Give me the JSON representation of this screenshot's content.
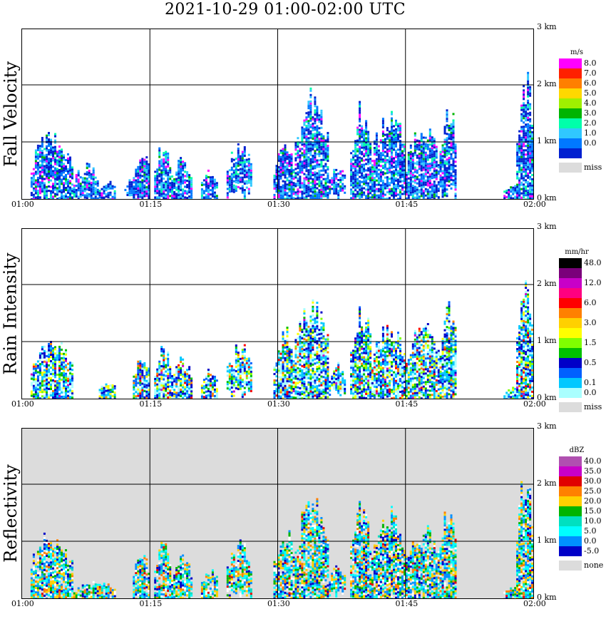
{
  "title": "2021-10-29   01:00-02:00 UTC",
  "chart_data": [
    {
      "type": "heatmap",
      "title": "Fall Velocity",
      "unit": "m/s",
      "x_ticks": [
        "01:00",
        "01:15",
        "01:30",
        "01:45",
        "02:00"
      ],
      "y_ticks": [
        "0 km",
        "1 km",
        "2 km",
        "3 km"
      ],
      "xlim": [
        "01:00",
        "02:00"
      ],
      "ylim_km": [
        0,
        3.0
      ],
      "grid": true,
      "background": "#ffffff",
      "missing_label": "miss",
      "colorbar": [
        {
          "label": "8.0",
          "color": "#ff00ff"
        },
        {
          "label": "7.0",
          "color": "#ff2000"
        },
        {
          "label": "6.0",
          "color": "#ff7f00"
        },
        {
          "label": "5.0",
          "color": "#ffd800"
        },
        {
          "label": "4.0",
          "color": "#a0f000"
        },
        {
          "label": "3.0",
          "color": "#00b400"
        },
        {
          "label": "2.0",
          "color": "#00ffaa"
        },
        {
          "label": "1.0",
          "color": "#30c8ff"
        },
        {
          "label": "0.0",
          "color": "#0078ff"
        },
        {
          "label": "",
          "color": "#0020d0"
        }
      ],
      "palette": [
        "#0020d0",
        "#0078ff",
        "#30c8ff",
        "#00ffaa",
        "#00b400",
        "#ff00ff"
      ],
      "weights": [
        0.34,
        0.28,
        0.18,
        0.08,
        0.04,
        0.01
      ],
      "clusters": [
        {
          "t0": 1,
          "t1": 6,
          "top_km": 1.15,
          "base_km": 0.0
        },
        {
          "t0": 6,
          "t1": 9,
          "top_km": 0.6,
          "base_km": 0.05
        },
        {
          "t0": 9,
          "t1": 11,
          "top_km": 0.3,
          "base_km": 0.0
        },
        {
          "t0": 12,
          "t1": 13.5,
          "top_km": 0.35,
          "base_km": 0.15
        },
        {
          "t0": 13,
          "t1": 15,
          "top_km": 0.8,
          "base_km": 0.0
        },
        {
          "t0": 15.5,
          "t1": 17.5,
          "top_km": 0.95,
          "base_km": 0.0
        },
        {
          "t0": 17.5,
          "t1": 20,
          "top_km": 0.7,
          "base_km": 0.0
        },
        {
          "t0": 21,
          "t1": 23,
          "top_km": 0.5,
          "base_km": 0.0
        },
        {
          "t0": 24,
          "t1": 27,
          "top_km": 1.0,
          "base_km": 0.25
        },
        {
          "t0": 29.5,
          "t1": 32,
          "top_km": 0.95,
          "base_km": 0.0
        },
        {
          "t0": 32,
          "t1": 36,
          "top_km": 1.8,
          "base_km": 0.0
        },
        {
          "t0": 36,
          "t1": 38,
          "top_km": 0.6,
          "base_km": 0.25
        },
        {
          "t0": 38.5,
          "t1": 41,
          "top_km": 1.6,
          "base_km": 0.0
        },
        {
          "t0": 41,
          "t1": 45,
          "top_km": 1.55,
          "base_km": 0.0
        },
        {
          "t0": 45,
          "t1": 49,
          "top_km": 1.25,
          "base_km": 0.0
        },
        {
          "t0": 49,
          "t1": 51,
          "top_km": 1.65,
          "base_km": 0.25
        },
        {
          "t0": 56.5,
          "t1": 58.5,
          "top_km": 0.25,
          "base_km": 0.0
        },
        {
          "t0": 58,
          "t1": 60,
          "top_km": 2.2,
          "base_km": 0.0
        }
      ]
    },
    {
      "type": "heatmap",
      "title": "Rain Intensity",
      "unit": "mm/hr",
      "x_ticks": [
        "01:00",
        "01:15",
        "01:30",
        "01:45",
        "02:00"
      ],
      "y_ticks": [
        "0 km",
        "1 km",
        "2 km",
        "3 km"
      ],
      "xlim": [
        "01:00",
        "02:00"
      ],
      "ylim_km": [
        0,
        3.0
      ],
      "grid": true,
      "background": "#ffffff",
      "missing_label": "miss",
      "colorbar": [
        {
          "label": "48.0",
          "color": "#000000"
        },
        {
          "label": "",
          "color": "#7a007a"
        },
        {
          "label": "12.0",
          "color": "#c800c8"
        },
        {
          "label": "",
          "color": "#ff0080"
        },
        {
          "label": "6.0",
          "color": "#ff0000"
        },
        {
          "label": "",
          "color": "#ff8000"
        },
        {
          "label": "3.0",
          "color": "#ffd000"
        },
        {
          "label": "",
          "color": "#ffff00"
        },
        {
          "label": "1.5",
          "color": "#80ff00"
        },
        {
          "label": "",
          "color": "#00c000"
        },
        {
          "label": "0.5",
          "color": "#0000c8"
        },
        {
          "label": "",
          "color": "#0060ff"
        },
        {
          "label": "0.1",
          "color": "#00c8ff"
        },
        {
          "label": "0.0",
          "color": "#aaffff"
        }
      ],
      "palette": [
        "#aaffff",
        "#00c8ff",
        "#0060ff",
        "#0000c8",
        "#00c000",
        "#80ff00",
        "#ffff00",
        "#ff8000",
        "#ff0000",
        "#c800c8"
      ],
      "weights": [
        0.2,
        0.2,
        0.14,
        0.16,
        0.08,
        0.06,
        0.08,
        0.04,
        0.03,
        0.01
      ],
      "clusters": [
        {
          "t0": 1,
          "t1": 6,
          "top_km": 1.0,
          "base_km": 0.0
        },
        {
          "t0": 9,
          "t1": 11,
          "top_km": 0.3,
          "base_km": 0.0
        },
        {
          "t0": 13,
          "t1": 15,
          "top_km": 0.75,
          "base_km": 0.0
        },
        {
          "t0": 15.5,
          "t1": 17.5,
          "top_km": 0.9,
          "base_km": 0.0
        },
        {
          "t0": 17.5,
          "t1": 20,
          "top_km": 0.7,
          "base_km": 0.0
        },
        {
          "t0": 21,
          "t1": 23,
          "top_km": 0.5,
          "base_km": 0.0
        },
        {
          "t0": 24,
          "t1": 27,
          "top_km": 0.95,
          "base_km": 0.2
        },
        {
          "t0": 29.5,
          "t1": 32,
          "top_km": 1.2,
          "base_km": 0.0
        },
        {
          "t0": 32,
          "t1": 36,
          "top_km": 1.75,
          "base_km": 0.0
        },
        {
          "t0": 36,
          "t1": 38,
          "top_km": 0.6,
          "base_km": 0.2
        },
        {
          "t0": 38.5,
          "t1": 41,
          "top_km": 1.6,
          "base_km": 0.0
        },
        {
          "t0": 41,
          "t1": 45,
          "top_km": 1.3,
          "base_km": 0.0
        },
        {
          "t0": 45,
          "t1": 49,
          "top_km": 1.3,
          "base_km": 0.0
        },
        {
          "t0": 49,
          "t1": 51,
          "top_km": 1.6,
          "base_km": 0.0
        },
        {
          "t0": 56.5,
          "t1": 58.5,
          "top_km": 0.2,
          "base_km": 0.0
        },
        {
          "t0": 58,
          "t1": 60,
          "top_km": 2.2,
          "base_km": 0.0
        }
      ]
    },
    {
      "type": "heatmap",
      "title": "Reflectivity",
      "unit": "dBZ",
      "x_ticks": [
        "01:00",
        "01:15",
        "01:30",
        "01:45",
        "02:00"
      ],
      "y_ticks": [
        "0 km",
        "1 km",
        "2 km",
        "3 km"
      ],
      "xlim": [
        "01:00",
        "02:00"
      ],
      "ylim_km": [
        0,
        3.0
      ],
      "grid": true,
      "background": "#dcdcdc",
      "missing_label": "none",
      "colorbar": [
        {
          "label": "40.0",
          "color": "#b050b0"
        },
        {
          "label": "35.0",
          "color": "#c800c8"
        },
        {
          "label": "30.0",
          "color": "#e00000"
        },
        {
          "label": "25.0",
          "color": "#ff8000"
        },
        {
          "label": "20.0",
          "color": "#ffd000"
        },
        {
          "label": "15.0",
          "color": "#00b400"
        },
        {
          "label": "10.0",
          "color": "#00e0c0"
        },
        {
          "label": "5.0",
          "color": "#00ffff"
        },
        {
          "label": "0.0",
          "color": "#0090ff"
        },
        {
          "label": "-5.0",
          "color": "#0000c8"
        }
      ],
      "palette": [
        "#ffffff",
        "#0000c8",
        "#0090ff",
        "#00ffff",
        "#00e0c0",
        "#00b400",
        "#ffd000",
        "#ff8000",
        "#e00000"
      ],
      "weights": [
        0.08,
        0.12,
        0.18,
        0.18,
        0.1,
        0.1,
        0.14,
        0.08,
        0.02
      ],
      "clusters": [
        {
          "t0": 1,
          "t1": 6,
          "top_km": 1.15,
          "base_km": 0.0
        },
        {
          "t0": 6,
          "t1": 11,
          "top_km": 0.3,
          "base_km": 0.0
        },
        {
          "t0": 13,
          "t1": 15,
          "top_km": 0.85,
          "base_km": 0.0
        },
        {
          "t0": 15.5,
          "t1": 17.5,
          "top_km": 0.95,
          "base_km": 0.0
        },
        {
          "t0": 17.5,
          "t1": 20,
          "top_km": 0.7,
          "base_km": 0.0
        },
        {
          "t0": 21,
          "t1": 23,
          "top_km": 0.5,
          "base_km": 0.0
        },
        {
          "t0": 24,
          "t1": 27,
          "top_km": 1.0,
          "base_km": 0.15
        },
        {
          "t0": 29.5,
          "t1": 32,
          "top_km": 1.2,
          "base_km": 0.0
        },
        {
          "t0": 32,
          "t1": 36,
          "top_km": 1.75,
          "base_km": 0.0
        },
        {
          "t0": 36,
          "t1": 38,
          "top_km": 0.6,
          "base_km": 0.2
        },
        {
          "t0": 38.5,
          "t1": 41,
          "top_km": 1.6,
          "base_km": 0.0
        },
        {
          "t0": 41,
          "t1": 45,
          "top_km": 1.55,
          "base_km": 0.0
        },
        {
          "t0": 45,
          "t1": 49,
          "top_km": 1.25,
          "base_km": 0.0
        },
        {
          "t0": 49,
          "t1": 51,
          "top_km": 1.6,
          "base_km": 0.0
        },
        {
          "t0": 56.5,
          "t1": 58.5,
          "top_km": 0.2,
          "base_km": 0.0
        },
        {
          "t0": 58,
          "t1": 60,
          "top_km": 2.2,
          "base_km": 0.0
        }
      ]
    }
  ]
}
